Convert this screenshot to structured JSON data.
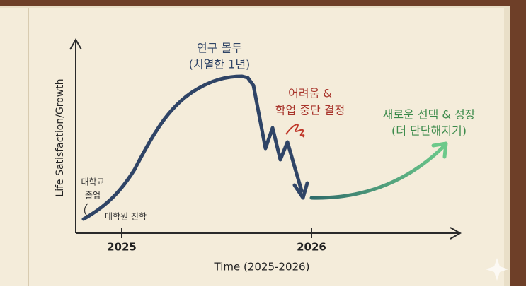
{
  "axes": {
    "y_label": "Life Satisfaction/Growth",
    "x_label": "Time (2025-2026)",
    "x_ticks": [
      "2025",
      "2026"
    ]
  },
  "annotations": {
    "peak": [
      "연구 몰두",
      "(치열한 1년)"
    ],
    "setback": [
      "어려움 &",
      "학업 중단 결정"
    ],
    "growth": [
      "새로운 선택 & 성장",
      "(더 단단해지기)"
    ],
    "milestones": [
      "대학교",
      "졸업",
      "대학원 진학"
    ]
  }
}
